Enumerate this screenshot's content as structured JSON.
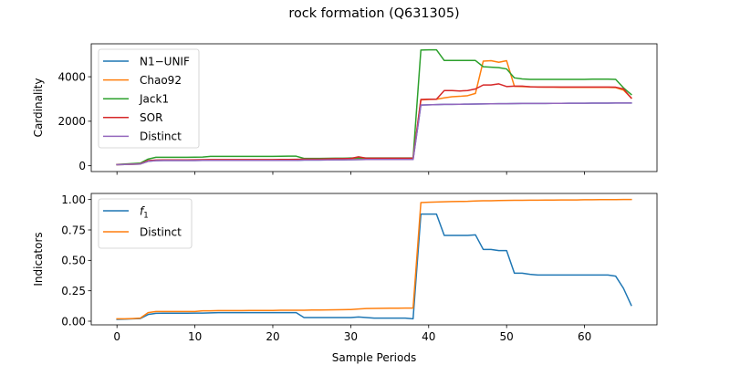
{
  "figure": {
    "title": "rock formation (Q631305)"
  },
  "chart_data": [
    {
      "type": "line",
      "ylabel": "Cardinality",
      "xlabel": "",
      "xlim": [
        -3.3,
        69.3
      ],
      "ylim": [
        -260,
        5480
      ],
      "x_ticks": [
        0,
        10,
        20,
        30,
        40,
        50,
        60
      ],
      "y_ticks": [
        0,
        2000,
        4000
      ],
      "y_tick_labels": [
        "0",
        "2000",
        "4000"
      ],
      "grid": false,
      "legend": "top-left",
      "x": [
        0,
        1,
        2,
        3,
        4,
        5,
        6,
        7,
        8,
        9,
        10,
        11,
        12,
        13,
        14,
        15,
        16,
        17,
        18,
        19,
        20,
        21,
        22,
        23,
        24,
        25,
        26,
        27,
        28,
        29,
        30,
        31,
        32,
        33,
        34,
        35,
        36,
        37,
        38,
        39,
        40,
        41,
        42,
        43,
        44,
        45,
        46,
        47,
        48,
        49,
        50,
        51,
        52,
        53,
        54,
        55,
        56,
        57,
        58,
        59,
        60,
        61,
        62,
        63,
        64,
        65,
        66
      ],
      "series": [
        {
          "name": "N1−UNIF",
          "color": "#1f77b4",
          "values": [
            50,
            60,
            70,
            80,
            200,
            230,
            235,
            235,
            235,
            235,
            235,
            240,
            240,
            240,
            240,
            240,
            240,
            240,
            240,
            240,
            240,
            240,
            240,
            240,
            260,
            260,
            260,
            265,
            270,
            270,
            275,
            280,
            285,
            285,
            285,
            285,
            285,
            285,
            285,
            2730,
            2740,
            2750,
            2760,
            2760,
            2765,
            2770,
            2775,
            2780,
            2785,
            2790,
            2790,
            2795,
            2800,
            2800,
            2800,
            2800,
            2805,
            2805,
            2810,
            2810,
            2810,
            2815,
            2815,
            2815,
            2820,
            2820,
            2820
          ]
        },
        {
          "name": "Chao92",
          "color": "#ff7f0e",
          "values": [
            50,
            60,
            70,
            80,
            210,
            240,
            245,
            245,
            245,
            245,
            250,
            260,
            260,
            260,
            260,
            260,
            260,
            260,
            260,
            260,
            260,
            260,
            260,
            260,
            280,
            280,
            280,
            290,
            300,
            300,
            310,
            320,
            320,
            320,
            320,
            320,
            320,
            320,
            320,
            2960,
            2980,
            2990,
            3050,
            3100,
            3120,
            3150,
            3250,
            4700,
            4720,
            4650,
            4720,
            3570,
            3560,
            3550,
            3540,
            3530,
            3530,
            3520,
            3520,
            3520,
            3520,
            3520,
            3520,
            3520,
            3510,
            3400,
            3050
          ]
        },
        {
          "name": "Jack1",
          "color": "#2ca02c",
          "values": [
            60,
            80,
            100,
            120,
            300,
            380,
            380,
            380,
            380,
            380,
            385,
            390,
            420,
            420,
            420,
            420,
            420,
            420,
            420,
            420,
            420,
            425,
            430,
            430,
            330,
            330,
            330,
            335,
            340,
            340,
            350,
            350,
            350,
            350,
            350,
            350,
            350,
            350,
            350,
            5200,
            5210,
            5210,
            4730,
            4730,
            4730,
            4730,
            4730,
            4450,
            4430,
            4410,
            4350,
            3950,
            3900,
            3880,
            3880,
            3880,
            3880,
            3880,
            3880,
            3880,
            3880,
            3890,
            3890,
            3890,
            3880,
            3500,
            3200
          ]
        },
        {
          "name": "SOR",
          "color": "#d62728",
          "values": [
            55,
            65,
            75,
            90,
            230,
            260,
            265,
            265,
            265,
            265,
            270,
            275,
            280,
            280,
            280,
            280,
            280,
            280,
            280,
            280,
            280,
            285,
            285,
            290,
            300,
            300,
            300,
            310,
            320,
            320,
            330,
            400,
            340,
            340,
            340,
            340,
            340,
            340,
            340,
            2980,
            2990,
            2990,
            3380,
            3380,
            3360,
            3380,
            3450,
            3630,
            3630,
            3680,
            3560,
            3580,
            3580,
            3550,
            3540,
            3540,
            3540,
            3540,
            3540,
            3540,
            3540,
            3540,
            3540,
            3540,
            3530,
            3450,
            3040
          ]
        },
        {
          "name": "Distinct",
          "color": "#9467bd",
          "values": [
            50,
            60,
            70,
            80,
            200,
            230,
            235,
            235,
            235,
            235,
            235,
            240,
            240,
            240,
            240,
            240,
            240,
            240,
            240,
            240,
            240,
            240,
            240,
            240,
            260,
            260,
            260,
            265,
            270,
            270,
            275,
            280,
            285,
            285,
            285,
            285,
            285,
            285,
            285,
            2730,
            2740,
            2750,
            2760,
            2760,
            2765,
            2770,
            2775,
            2780,
            2785,
            2790,
            2790,
            2795,
            2800,
            2800,
            2800,
            2800,
            2805,
            2805,
            2810,
            2810,
            2810,
            2815,
            2815,
            2815,
            2820,
            2820,
            2820
          ]
        }
      ]
    },
    {
      "type": "line",
      "ylabel": "Indicators",
      "xlabel": "Sample Periods",
      "xlim": [
        -3.3,
        69.3
      ],
      "ylim": [
        -0.03,
        1.05
      ],
      "x_ticks": [
        0,
        10,
        20,
        30,
        40,
        50,
        60
      ],
      "x_tick_labels": [
        "0",
        "10",
        "20",
        "30",
        "40",
        "50",
        "60"
      ],
      "y_ticks": [
        0,
        0.25,
        0.5,
        0.75,
        1.0
      ],
      "y_tick_labels": [
        "0.00",
        "0.25",
        "0.50",
        "0.75",
        "1.00"
      ],
      "grid": false,
      "legend": "top-left",
      "x": [
        0,
        1,
        2,
        3,
        4,
        5,
        6,
        7,
        8,
        9,
        10,
        11,
        12,
        13,
        14,
        15,
        16,
        17,
        18,
        19,
        20,
        21,
        22,
        23,
        24,
        25,
        26,
        27,
        28,
        29,
        30,
        31,
        32,
        33,
        34,
        35,
        36,
        37,
        38,
        39,
        40,
        41,
        42,
        43,
        44,
        45,
        46,
        47,
        48,
        49,
        50,
        51,
        52,
        53,
        54,
        55,
        56,
        57,
        58,
        59,
        60,
        61,
        62,
        63,
        64,
        65,
        66
      ],
      "series": [
        {
          "name": "f₁",
          "name_main": "f",
          "name_sub": "1",
          "color": "#1f77b4",
          "values": [
            0.015,
            0.017,
            0.02,
            0.022,
            0.055,
            0.065,
            0.066,
            0.066,
            0.066,
            0.066,
            0.067,
            0.067,
            0.068,
            0.07,
            0.07,
            0.07,
            0.07,
            0.07,
            0.07,
            0.07,
            0.07,
            0.07,
            0.07,
            0.07,
            0.03,
            0.03,
            0.03,
            0.03,
            0.03,
            0.03,
            0.03,
            0.035,
            0.03,
            0.025,
            0.025,
            0.025,
            0.025,
            0.025,
            0.02,
            0.88,
            0.88,
            0.88,
            0.705,
            0.705,
            0.705,
            0.705,
            0.71,
            0.59,
            0.59,
            0.58,
            0.58,
            0.395,
            0.395,
            0.385,
            0.38,
            0.38,
            0.38,
            0.38,
            0.38,
            0.38,
            0.38,
            0.38,
            0.38,
            0.38,
            0.37,
            0.27,
            0.13
          ]
        },
        {
          "name": "Distinct",
          "color": "#ff7f0e",
          "values": [
            0.02,
            0.02,
            0.022,
            0.025,
            0.07,
            0.08,
            0.08,
            0.08,
            0.08,
            0.08,
            0.08,
            0.085,
            0.085,
            0.087,
            0.087,
            0.087,
            0.087,
            0.088,
            0.088,
            0.088,
            0.088,
            0.09,
            0.09,
            0.09,
            0.09,
            0.092,
            0.092,
            0.093,
            0.094,
            0.095,
            0.096,
            0.1,
            0.104,
            0.105,
            0.106,
            0.107,
            0.107,
            0.108,
            0.108,
            0.975,
            0.978,
            0.98,
            0.982,
            0.983,
            0.984,
            0.985,
            0.988,
            0.99,
            0.99,
            0.992,
            0.993,
            0.994,
            0.994,
            0.995,
            0.995,
            0.996,
            0.996,
            0.997,
            0.997,
            0.997,
            0.998,
            0.998,
            0.999,
            0.999,
            0.999,
            1.0,
            1.0
          ]
        }
      ]
    }
  ]
}
